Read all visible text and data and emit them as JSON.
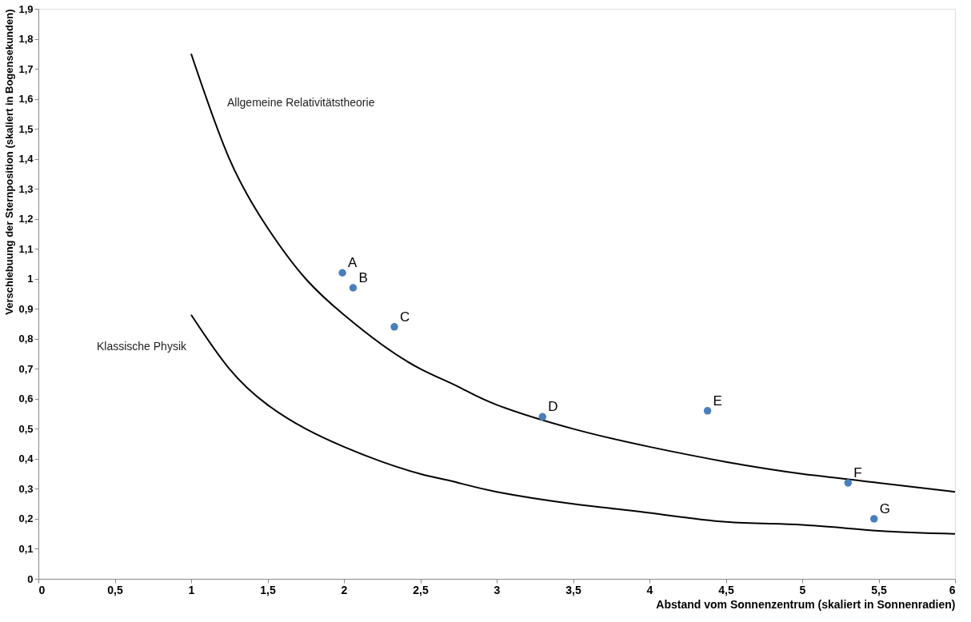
{
  "chart_data": {
    "type": "scatter",
    "xlabel": "Abstand vom Sonnenzentrum (skaliert in Sonnenradien)",
    "ylabel": "Verschiebuung der Sternposition (skaliert in Bogensekunden)",
    "xlim": [
      0,
      6
    ],
    "ylim": [
      0,
      1.9
    ],
    "xticks": [
      0,
      {
        "value": 0.5,
        "label": "0,5"
      },
      1,
      {
        "value": 1.5,
        "label": "1,5"
      },
      2,
      {
        "value": 2.5,
        "label": "2,5"
      },
      3,
      {
        "value": 3.5,
        "label": "3,5"
      },
      4,
      {
        "value": 4.5,
        "label": "4,5"
      },
      5,
      {
        "value": 5.5,
        "label": "5,5"
      },
      6
    ],
    "yticks": [
      0,
      {
        "value": 0.1,
        "label": "0,1"
      },
      {
        "value": 0.2,
        "label": "0,2"
      },
      {
        "value": 0.3,
        "label": "0,3"
      },
      {
        "value": 0.4,
        "label": "0,4"
      },
      {
        "value": 0.5,
        "label": "0,5"
      },
      {
        "value": 0.6,
        "label": "0,6"
      },
      {
        "value": 0.7,
        "label": "0,7"
      },
      {
        "value": 0.8,
        "label": "0,8"
      },
      {
        "value": 0.9,
        "label": "0,9"
      },
      1,
      {
        "value": 1.1,
        "label": "1,1"
      },
      {
        "value": 1.2,
        "label": "1,2"
      },
      {
        "value": 1.3,
        "label": "1,3"
      },
      {
        "value": 1.4,
        "label": "1,4"
      },
      {
        "value": 1.5,
        "label": "1,5"
      },
      {
        "value": 1.6,
        "label": "1,6"
      },
      {
        "value": 1.7,
        "label": "1,7"
      },
      {
        "value": 1.8,
        "label": "1,8"
      },
      {
        "value": 1.9,
        "label": "1,9"
      }
    ],
    "grid": false,
    "marker": "circle",
    "series": [
      {
        "name": "Allgemeine Relativitätstheorie",
        "type": "line",
        "color": "#000000",
        "marker": "none",
        "x": [
          1,
          1.25,
          1.5,
          1.75,
          2,
          2.25,
          2.5,
          2.75,
          3,
          3.5,
          4,
          4.5,
          5,
          5.5,
          6
        ],
        "values": [
          1.75,
          1.4,
          1.17,
          1.0,
          0.88,
          0.78,
          0.7,
          0.64,
          0.58,
          0.5,
          0.44,
          0.39,
          0.35,
          0.32,
          0.29
        ]
      },
      {
        "name": "Klassische Physik",
        "type": "line",
        "color": "#000000",
        "marker": "none",
        "x": [
          1,
          1.25,
          1.5,
          1.75,
          2,
          2.25,
          2.5,
          2.75,
          3,
          3.5,
          4,
          4.5,
          5,
          5.5,
          6
        ],
        "values": [
          0.88,
          0.7,
          0.58,
          0.5,
          0.44,
          0.39,
          0.35,
          0.32,
          0.29,
          0.25,
          0.22,
          0.19,
          0.18,
          0.16,
          0.15
        ]
      },
      {
        "color": "#4a7ebb",
        "x": [
          1.99,
          2.06,
          2.33,
          3.3,
          4.38,
          5.3,
          5.47
        ],
        "values": [
          1.02,
          0.97,
          0.84,
          0.54,
          0.56,
          0.32,
          0.2
        ]
      }
    ],
    "annotations": [
      {
        "text": "A",
        "x": 1.99,
        "y": 1.02
      },
      {
        "text": "B",
        "x": 2.06,
        "y": 0.97
      },
      {
        "text": "C",
        "x": 2.33,
        "y": 0.84
      },
      {
        "text": "D",
        "x": 3.3,
        "y": 0.54
      },
      {
        "text": "E",
        "x": 4.38,
        "y": 0.56
      },
      {
        "text": "F",
        "x": 5.3,
        "y": 0.32
      },
      {
        "text": "G",
        "x": 5.47,
        "y": 0.2
      }
    ]
  }
}
